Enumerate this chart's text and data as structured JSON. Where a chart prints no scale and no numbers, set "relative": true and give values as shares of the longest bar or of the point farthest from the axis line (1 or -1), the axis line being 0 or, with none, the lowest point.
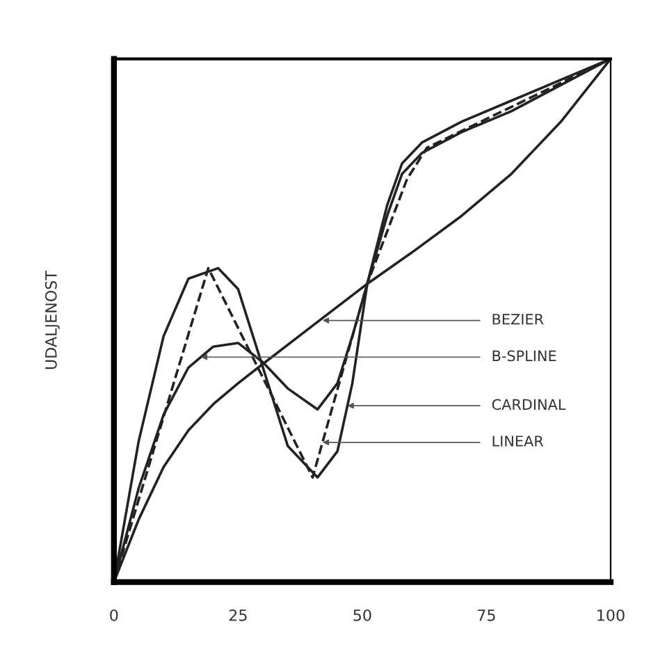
{
  "chart_data": {
    "type": "line",
    "relative": true,
    "ylabel": "UDALJENOST",
    "xlim": [
      0,
      100
    ],
    "xticks": [
      0,
      25,
      50,
      75,
      100
    ],
    "tick_labels": "x",
    "grid": false,
    "legend": false,
    "series": [
      {
        "color": "#222222",
        "line_style": "dashed",
        "x": [
          0,
          19,
          40,
          51,
          59,
          63,
          100
        ],
        "values": [
          0,
          0.6,
          0.2,
          0.57,
          0.77,
          0.83,
          1
        ]
      },
      {
        "color": "#222222",
        "line_style": "solid",
        "x": [
          0,
          5,
          10,
          15,
          21,
          25,
          30,
          35,
          41,
          45,
          48,
          51,
          55,
          58,
          62,
          70,
          80,
          90,
          100
        ],
        "values": [
          0,
          0.27,
          0.47,
          0.58,
          0.6,
          0.56,
          0.41,
          0.26,
          0.2,
          0.25,
          0.38,
          0.57,
          0.72,
          0.8,
          0.84,
          0.88,
          0.92,
          0.96,
          1
        ]
      },
      {
        "color": "#222222",
        "line_style": "solid",
        "x": [
          0,
          5,
          10,
          15,
          20,
          25,
          30,
          35,
          41,
          45,
          48,
          51,
          55,
          58,
          62,
          70,
          80,
          90,
          100
        ],
        "values": [
          0,
          0.18,
          0.32,
          0.41,
          0.45,
          0.457,
          0.42,
          0.37,
          0.33,
          0.38,
          0.47,
          0.57,
          0.7,
          0.78,
          0.82,
          0.86,
          0.9,
          0.95,
          1
        ]
      },
      {
        "color": "#222222",
        "line_style": "solid",
        "x": [
          0,
          5,
          10,
          15,
          20,
          25,
          30,
          40,
          51,
          60,
          70,
          75,
          80,
          90,
          100
        ],
        "values": [
          0,
          0.12,
          0.22,
          0.29,
          0.34,
          0.38,
          0.417,
          0.49,
          0.57,
          0.63,
          0.7,
          0.74,
          0.78,
          0.88,
          1
        ]
      }
    ],
    "annotations": [
      {
        "text": "BEZIER",
        "x": 42,
        "y": 0.5
      },
      {
        "text": "B-SPLINE",
        "x": 17.5,
        "y": 0.43
      },
      {
        "text": "CARDINAL",
        "x": 47,
        "y": 0.337
      },
      {
        "text": "LINEAR",
        "x": 42,
        "y": 0.267
      }
    ]
  }
}
